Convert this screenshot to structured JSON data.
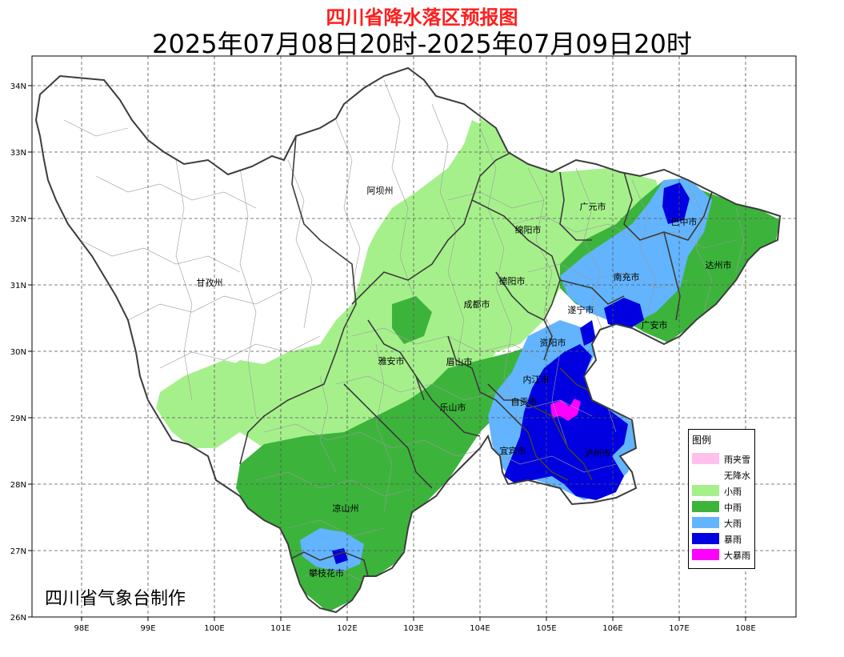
{
  "header": {
    "title": "四川省降水落区预报图",
    "period": "2025年07月08日20时-2025年07月09日20时"
  },
  "credit": "四川省气象台制作",
  "axes": {
    "lat_labels": [
      "34N",
      "33N",
      "32N",
      "31N",
      "30N",
      "29N",
      "28N",
      "27N",
      "26N"
    ],
    "lon_labels": [
      "98E",
      "99E",
      "100E",
      "101E",
      "102E",
      "103E",
      "104E",
      "105E",
      "106E",
      "107E",
      "108E"
    ]
  },
  "cities": [
    {
      "name": "阿坝州"
    },
    {
      "name": "广元市"
    },
    {
      "name": "巴中市"
    },
    {
      "name": "绵阳市"
    },
    {
      "name": "达州市"
    },
    {
      "name": "甘孜州"
    },
    {
      "name": "德阳市"
    },
    {
      "name": "南充市"
    },
    {
      "name": "成都市"
    },
    {
      "name": "遂宁市"
    },
    {
      "name": "广安市"
    },
    {
      "name": "资阳市"
    },
    {
      "name": "雅安市"
    },
    {
      "name": "眉山市"
    },
    {
      "name": "内江市"
    },
    {
      "name": "自贡市"
    },
    {
      "name": "乐山市"
    },
    {
      "name": "宜宾市"
    },
    {
      "name": "泸州市"
    },
    {
      "name": "凉山州"
    },
    {
      "name": "攀枝花市"
    }
  ],
  "legend": {
    "title": "图例",
    "items": [
      {
        "label": "雨夹雪",
        "color": "#ffc0ee"
      },
      {
        "label": "无降水",
        "color": "#ffffff"
      },
      {
        "label": "小雨",
        "color": "#a6f08c"
      },
      {
        "label": "中雨",
        "color": "#3cb43c"
      },
      {
        "label": "大雨",
        "color": "#62b4ff"
      },
      {
        "label": "暴雨",
        "color": "#0000e0"
      },
      {
        "label": "大暴雨",
        "color": "#ff00ff"
      }
    ]
  }
}
